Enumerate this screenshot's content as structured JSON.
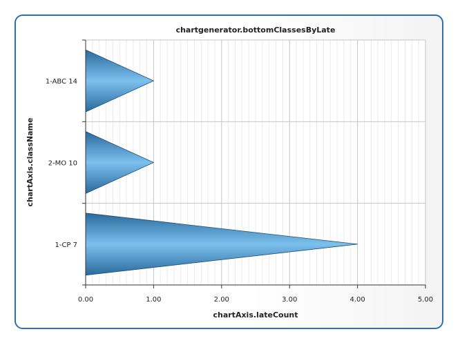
{
  "chart_data": {
    "type": "bar",
    "orientation": "horizontal",
    "bar_shape": "triangle",
    "title": "chartgenerator.bottomClassesByLate",
    "xlabel": "chartAxis.lateCount",
    "ylabel": "chartAxis.className",
    "categories": [
      "1-ABC 14",
      "2-MO 10",
      "1-CP 7"
    ],
    "values": [
      1,
      1,
      4
    ],
    "xlim": [
      0,
      5
    ],
    "x_ticks": [
      "0.00",
      "1.00",
      "2.00",
      "3.00",
      "4.00",
      "5.00"
    ],
    "grid": true,
    "colors": {
      "bar_light": "#7cc0ee",
      "bar_dark": "#2a6a9c",
      "border": "#2f6db5"
    }
  }
}
